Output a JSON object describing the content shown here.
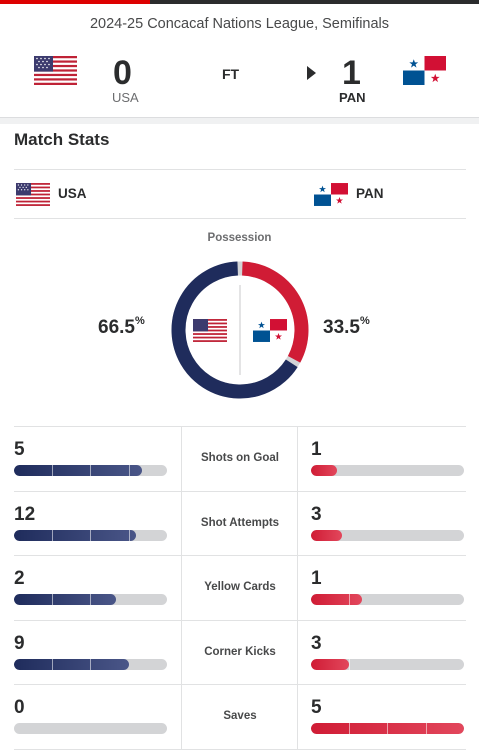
{
  "header": {
    "competition": "2024-25 Concacaf Nations League, Semifinals",
    "status": "FT",
    "home": {
      "abbr": "USA",
      "score": "0",
      "flag_icon": "usa-flag-icon"
    },
    "away": {
      "abbr": "PAN",
      "score": "1",
      "flag_icon": "panama-flag-icon"
    }
  },
  "stats": {
    "title": "Match Stats",
    "home_team": "USA",
    "away_team": "PAN",
    "possession": {
      "label": "Possession",
      "home_pct": "66.5",
      "away_pct": "33.5",
      "symbol": "%"
    },
    "rows": [
      {
        "label": "Shots on Goal",
        "home": "5",
        "away": "1"
      },
      {
        "label": "Shot Attempts",
        "home": "12",
        "away": "3"
      },
      {
        "label": "Yellow Cards",
        "home": "2",
        "away": "1"
      },
      {
        "label": "Corner Kicks",
        "home": "9",
        "away": "3"
      },
      {
        "label": "Saves",
        "home": "0",
        "away": "5"
      }
    ]
  },
  "colors": {
    "usa": "#1f2c5c",
    "panama": "#d01c35",
    "track": "#d3d4d6"
  }
}
